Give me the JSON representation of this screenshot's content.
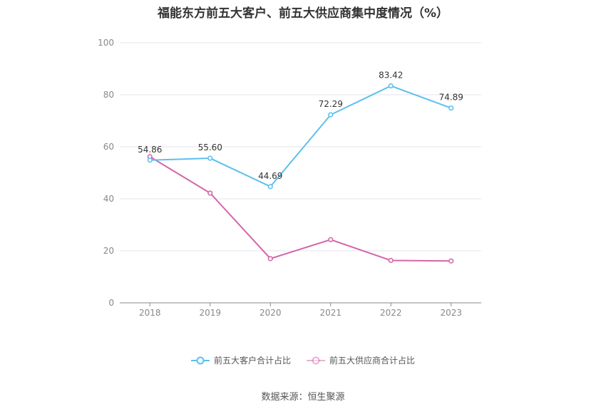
{
  "chart_data": {
    "type": "line",
    "title": "福能东方前五大客户、前五大供应商集中度情况（%）",
    "categories": [
      "2018",
      "2019",
      "2020",
      "2021",
      "2022",
      "2023"
    ],
    "ylim": [
      0,
      100
    ],
    "yticks": [
      0,
      20,
      40,
      60,
      80,
      100
    ],
    "grid": true,
    "legend_position": "bottom",
    "series": [
      {
        "name": "前五大客户合计占比",
        "color": "#5bc0ee",
        "values": [
          54.86,
          55.6,
          44.69,
          72.29,
          83.42,
          74.89
        ],
        "labels": [
          "54.86",
          "55.60",
          "44.69",
          "72.29",
          "83.42",
          "74.89"
        ]
      },
      {
        "name": "前五大供应商合计占比",
        "color": "#d466a9",
        "values": [
          56.2,
          42.2,
          17.0,
          24.3,
          16.3,
          16.1
        ]
      }
    ]
  },
  "source": "数据来源：恒生聚源"
}
